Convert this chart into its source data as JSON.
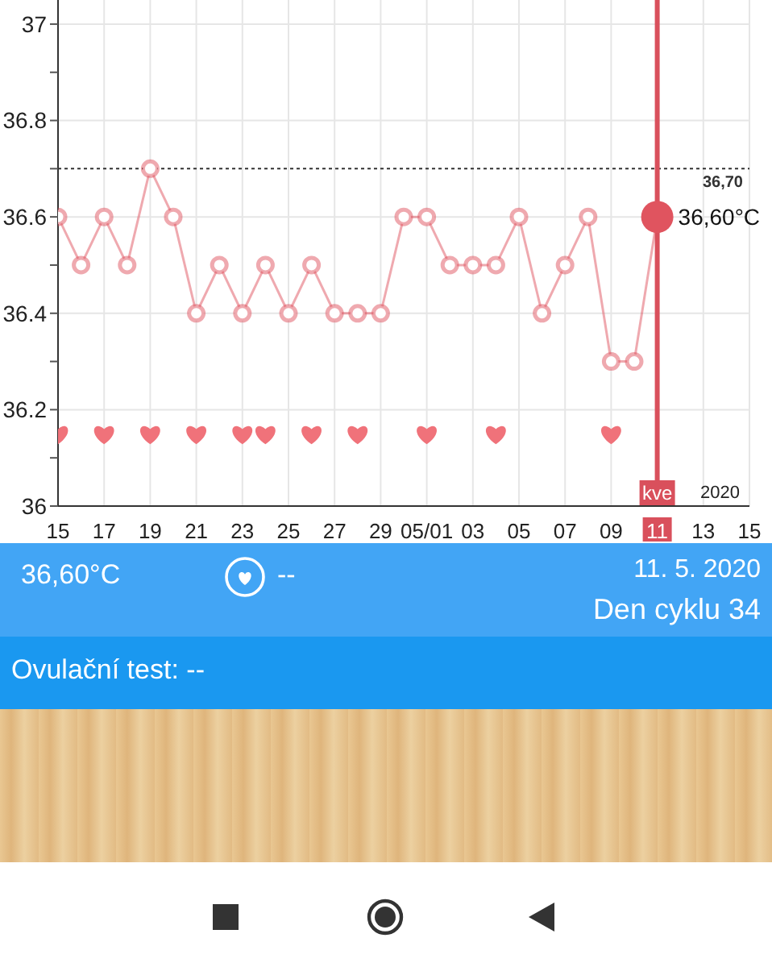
{
  "chart_data": {
    "type": "line",
    "x": [
      "2020-04-15",
      "2020-04-16",
      "2020-04-17",
      "2020-04-18",
      "2020-04-19",
      "2020-04-20",
      "2020-04-21",
      "2020-04-22",
      "2020-04-23",
      "2020-04-24",
      "2020-04-25",
      "2020-04-26",
      "2020-04-27",
      "2020-04-28",
      "2020-04-29",
      "2020-04-30",
      "2020-05-01",
      "2020-05-02",
      "2020-05-03",
      "2020-05-04",
      "2020-05-05",
      "2020-05-06",
      "2020-05-07",
      "2020-05-08",
      "2020-05-09",
      "2020-05-10",
      "2020-05-11"
    ],
    "series": [
      {
        "color": "#e0545f",
        "marker": "circle",
        "values": [
          36.6,
          36.5,
          36.6,
          36.5,
          36.7,
          36.6,
          36.4,
          36.5,
          36.4,
          36.5,
          36.4,
          36.5,
          36.4,
          36.4,
          36.4,
          36.6,
          36.6,
          36.5,
          36.5,
          36.5,
          36.6,
          36.4,
          36.5,
          36.6,
          36.3,
          36.3,
          36.6
        ]
      },
      {
        "type": "scatter",
        "color": "#f0727a",
        "x": [
          "2020-04-15",
          "2020-04-17",
          "2020-04-19",
          "2020-04-21",
          "2020-04-23",
          "2020-04-24",
          "2020-04-26",
          "2020-04-28",
          "2020-05-01",
          "2020-05-04",
          "2020-05-09"
        ],
        "values": [
          36.15,
          36.15,
          36.15,
          36.15,
          36.15,
          36.15,
          36.15,
          36.15,
          36.15,
          36.15,
          36.15
        ]
      }
    ],
    "xlim": [
      "2020-04-15",
      "2020-05-15"
    ],
    "xticks": [
      {
        "value": "2020-04-15",
        "label": "15"
      },
      {
        "value": "2020-04-17",
        "label": "17"
      },
      {
        "value": "2020-04-19",
        "label": "19"
      },
      {
        "value": "2020-04-21",
        "label": "21"
      },
      {
        "value": "2020-04-23",
        "label": "23"
      },
      {
        "value": "2020-04-25",
        "label": "25"
      },
      {
        "value": "2020-04-27",
        "label": "27"
      },
      {
        "value": "2020-04-29",
        "label": "29"
      },
      {
        "value": "2020-05-01",
        "label": "05/01"
      },
      {
        "value": "2020-05-03",
        "label": "03"
      },
      {
        "value": "2020-05-05",
        "label": "05"
      },
      {
        "value": "2020-05-07",
        "label": "07"
      },
      {
        "value": "2020-05-09",
        "label": "09"
      },
      {
        "value": "2020-05-11",
        "label": "11"
      },
      {
        "value": "2020-05-13",
        "label": "13"
      },
      {
        "value": "2020-05-15",
        "label": "15"
      }
    ],
    "ylim": [
      36,
      37.05
    ],
    "yticks": [
      36,
      {
        "value": 36.1,
        "label": null
      },
      36.2,
      {
        "value": 36.3,
        "label": null
      },
      36.4,
      {
        "value": 36.5,
        "label": null
      },
      36.6,
      {
        "value": 36.7,
        "label": null
      },
      36.8,
      {
        "value": 36.9,
        "label": null
      },
      37
    ],
    "grid": true,
    "ref_lines": [
      {
        "axis": "y",
        "value": 36.7,
        "label": "36,70",
        "color": "#333333",
        "line_style": "dotted"
      },
      {
        "axis": "x",
        "value": "2020-05-11",
        "label": "kve",
        "color": "#d9505c",
        "line_style": "solid"
      }
    ],
    "annotations": [
      {
        "text": "36,60°C",
        "x": "2020-05-11",
        "y": 36.6
      },
      "2020",
      "36,60°C",
      "--",
      "11. 5. 2020",
      "Den cyklu 34",
      "Ovulační test: --"
    ]
  }
}
